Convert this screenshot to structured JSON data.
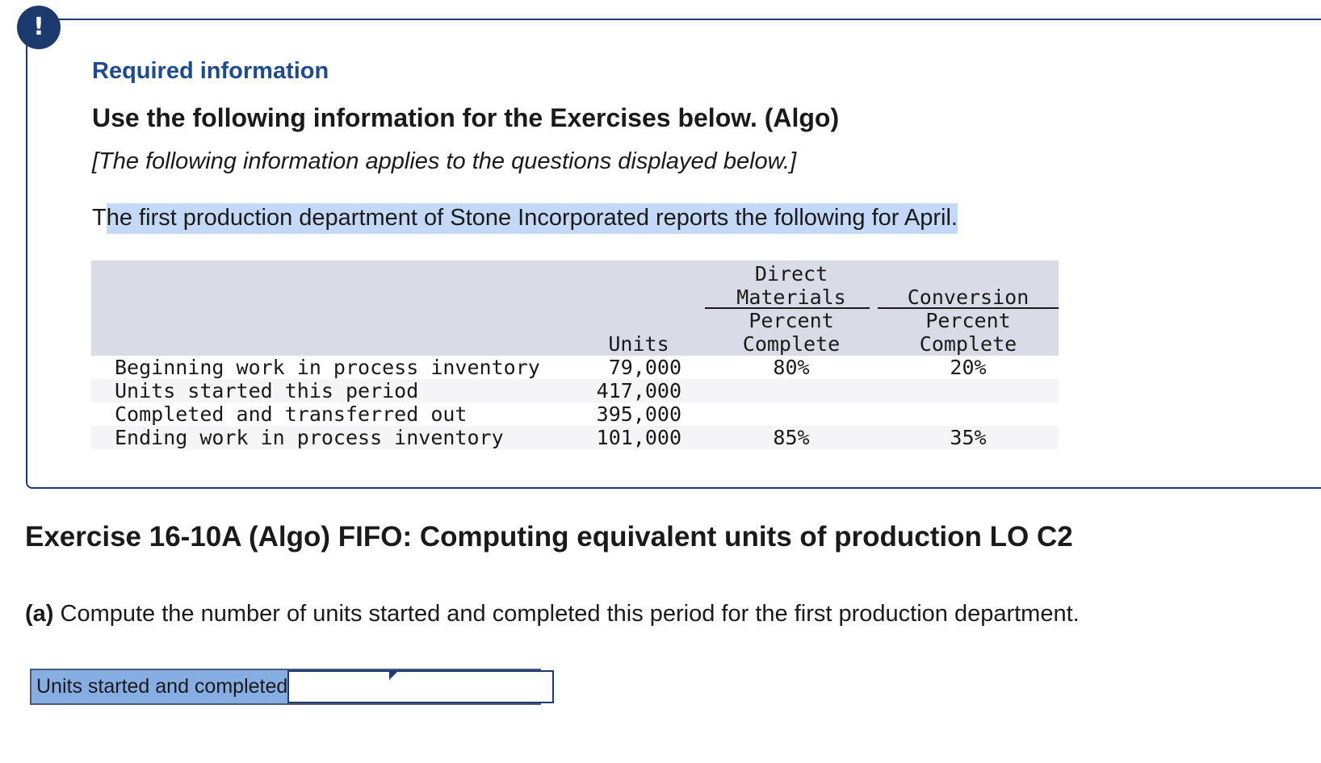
{
  "alert": {
    "icon": "exclamation-icon",
    "glyph": "!"
  },
  "info": {
    "required_title": "Required information",
    "use_following": "Use the following information for the Exercises below. (Algo)",
    "applies_note": "[The following information applies to the questions displayed below.]",
    "intro_first": "T",
    "intro_highlighted": "he first production department of Stone Incorporated reports the following for April."
  },
  "table": {
    "headers": {
      "units": "Units",
      "dm_group": [
        "Direct",
        "Materials"
      ],
      "dm_sub": [
        "Percent",
        "Complete"
      ],
      "cv_group": "Conversion",
      "cv_sub": [
        "Percent",
        "Complete"
      ]
    },
    "rows": [
      {
        "label": "Beginning work in process inventory",
        "units": "79,000",
        "dm": "80%",
        "cv": "20%"
      },
      {
        "label": "Units started this period",
        "units": "417,000",
        "dm": "",
        "cv": ""
      },
      {
        "label": "Completed and transferred out",
        "units": "395,000",
        "dm": "",
        "cv": ""
      },
      {
        "label": "Ending work in process inventory",
        "units": "101,000",
        "dm": "85%",
        "cv": "35%"
      }
    ]
  },
  "exercise": {
    "title": "Exercise 16-10A (Algo) FIFO: Computing equivalent units of production LO C2",
    "question_part": "(a)",
    "question_text": " Compute the number of units started and completed this period for the first production department.",
    "answer_label": "Units started and completed",
    "answer_value": ""
  },
  "colors": {
    "accent_navy": "#1d3a6e",
    "title_blue": "#1d4b8f",
    "highlight": "#c3d9f7",
    "label_blue": "#86aee3",
    "table_header": "#d9dce6"
  }
}
